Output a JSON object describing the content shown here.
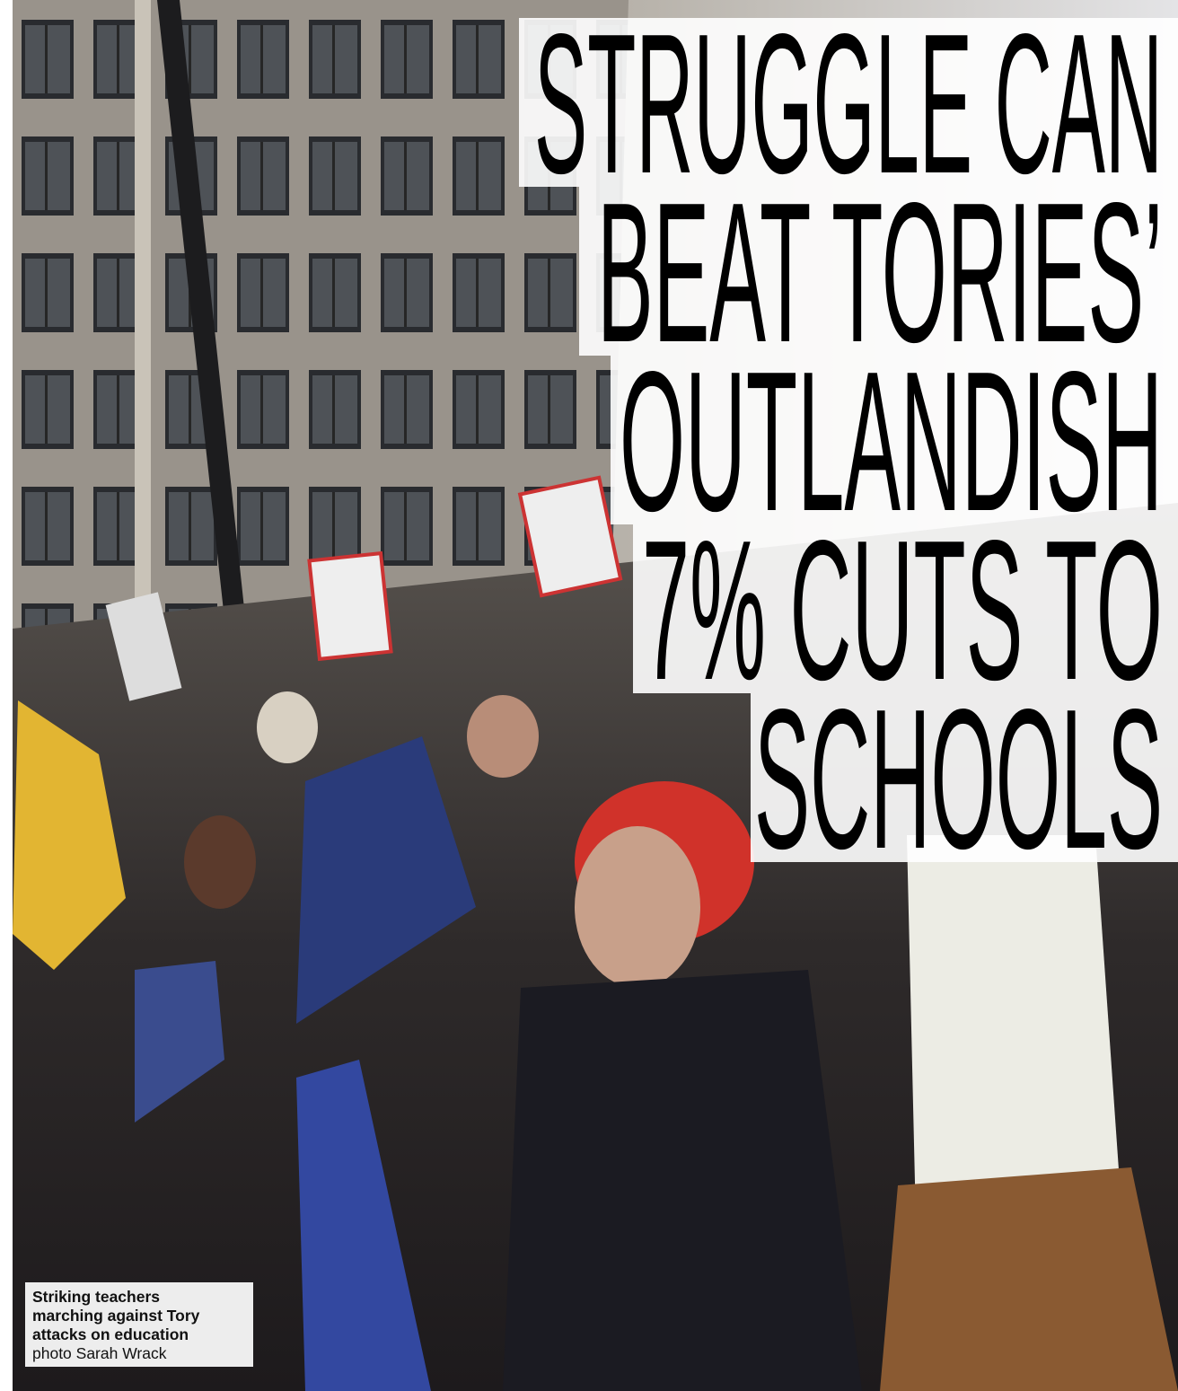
{
  "headline": {
    "lines": [
      "STRUGGLE CAN",
      "BEAT TORIES’",
      "OUTLANDISH",
      "7% CUTS TO",
      "SCHOOLS"
    ]
  },
  "caption": {
    "lines": [
      "Striking teachers",
      "marching against Tory",
      "attacks on education"
    ],
    "credit": "photo Sarah Wrack"
  }
}
